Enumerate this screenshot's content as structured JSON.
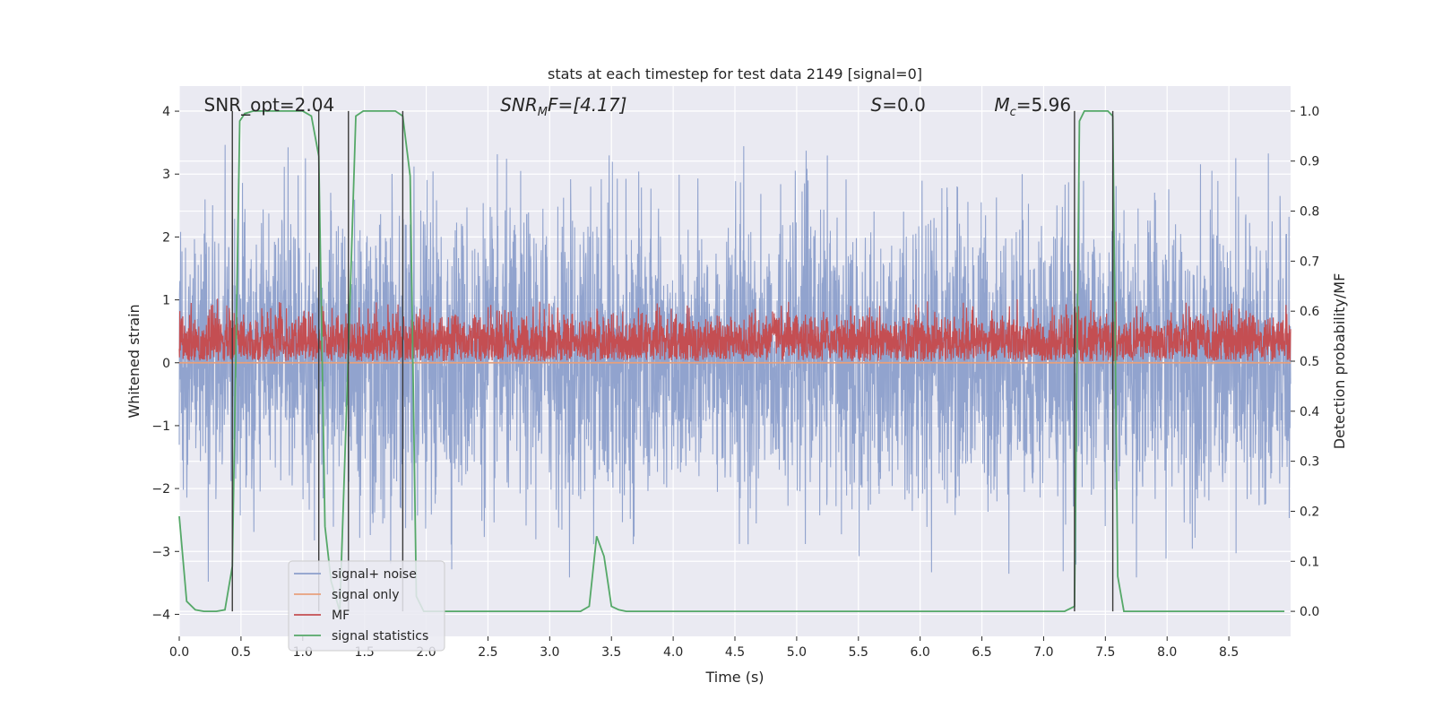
{
  "chart_data": {
    "type": "line",
    "title": "stats at each timestep for test data 2149 [signal=0]",
    "xlabel": "Time (s)",
    "ylabel": "Whitened strain",
    "ylabel_right": "Detection probability/MF",
    "xlim": [
      0.0,
      9.0
    ],
    "ylim": [
      -4.35,
      4.4
    ],
    "ylim_right": [
      -0.05,
      1.05
    ],
    "xticks": [
      0.0,
      0.5,
      1.0,
      1.5,
      2.0,
      2.5,
      3.0,
      3.5,
      4.0,
      4.5,
      5.0,
      5.5,
      6.0,
      6.5,
      7.0,
      7.5,
      8.0,
      8.5
    ],
    "xtick_labels": [
      "0.0",
      "0.5",
      "1.0",
      "1.5",
      "2.0",
      "2.5",
      "3.0",
      "3.5",
      "4.0",
      "4.5",
      "5.0",
      "5.5",
      "6.0",
      "6.5",
      "7.0",
      "7.5",
      "8.0",
      "8.5"
    ],
    "yticks": [
      -4,
      -3,
      -2,
      -1,
      0,
      1,
      2,
      3,
      4
    ],
    "ytick_labels": [
      "−4",
      "−3",
      "−2",
      "−1",
      "0",
      "1",
      "2",
      "3",
      "4"
    ],
    "yticks_right": [
      0.0,
      0.1,
      0.2,
      0.3,
      0.4,
      0.5,
      0.6,
      0.7,
      0.8,
      0.9,
      1.0
    ],
    "ytick_labels_right": [
      "0.0",
      "0.1",
      "0.2",
      "0.3",
      "0.4",
      "0.5",
      "0.6",
      "0.7",
      "0.8",
      "0.9",
      "1.0"
    ],
    "grid": true,
    "legend_position": "lower-left",
    "annotations": [
      {
        "text": "SNR_opt=2.04",
        "x": 0.2
      },
      {
        "text": "SNR",
        "sub": "M",
        "text_after": "F=[4.17]",
        "italic": true,
        "x": 2.6
      },
      {
        "text": "S",
        "text_after": "=0.0",
        "italic": true,
        "x": 5.6
      },
      {
        "text": "M",
        "sub": "c",
        "text_after": "=5.96",
        "italic": true,
        "x": 6.6
      }
    ],
    "vertical_lines": [
      0.43,
      1.13,
      1.37,
      1.81,
      7.25,
      7.56
    ],
    "series": [
      {
        "name": "signal+ noise",
        "axis": "left",
        "color": "#8c9fcb",
        "style": "noise",
        "mean": 0.1,
        "envelope_min": -3.5,
        "envelope_max": 3.6,
        "samples": 4096
      },
      {
        "name": "signal only",
        "axis": "left",
        "color": "#e8a07c",
        "x": [
          0.0,
          9.0
        ],
        "y": [
          0.0,
          0.0
        ]
      },
      {
        "name": "MF",
        "axis": "right",
        "color": "#c44e52",
        "style": "noise",
        "mean": 0.54,
        "envelope_min": 0.5,
        "envelope_max": 0.63,
        "samples": 4096
      },
      {
        "name": "signal statistics",
        "axis": "right",
        "color": "#55a868",
        "x": [
          0.0,
          0.06,
          0.13,
          0.2,
          0.3,
          0.37,
          0.43,
          0.49,
          0.53,
          0.6,
          0.7,
          0.8,
          0.9,
          1.0,
          1.07,
          1.13,
          1.18,
          1.23,
          1.3,
          1.37,
          1.43,
          1.49,
          1.55,
          1.65,
          1.75,
          1.81,
          1.87,
          1.92,
          1.98,
          2.05,
          2.15,
          2.5,
          3.0,
          3.25,
          3.32,
          3.38,
          3.44,
          3.5,
          3.56,
          3.62,
          3.7,
          4.0,
          5.0,
          6.0,
          6.5,
          7.0,
          7.17,
          7.25,
          7.29,
          7.33,
          7.45,
          7.52,
          7.56,
          7.6,
          7.65,
          7.72,
          7.8,
          8.0,
          8.5,
          8.95
        ],
        "y": [
          0.19,
          0.02,
          0.003,
          0.0,
          0.0,
          0.003,
          0.09,
          0.98,
          0.995,
          1.0,
          1.0,
          1.0,
          1.0,
          1.0,
          0.99,
          0.91,
          0.17,
          0.06,
          0.0,
          0.52,
          0.99,
          1.0,
          1.0,
          1.0,
          1.0,
          0.99,
          0.87,
          0.03,
          0.0,
          0.0,
          0.0,
          0.0,
          0.0,
          0.0,
          0.01,
          0.15,
          0.11,
          0.01,
          0.003,
          0.0,
          0.0,
          0.0,
          0.0,
          0.0,
          0.0,
          0.0,
          0.0,
          0.01,
          0.98,
          1.0,
          1.0,
          1.0,
          0.99,
          0.07,
          0.0,
          0.0,
          0.0,
          0.0,
          0.0,
          0.0
        ]
      }
    ]
  }
}
